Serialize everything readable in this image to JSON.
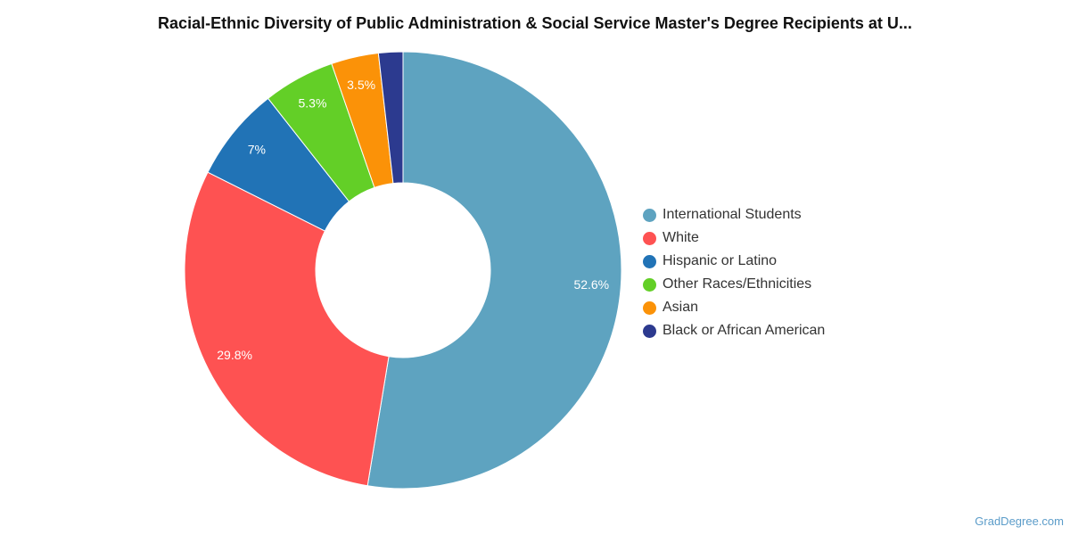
{
  "chart_data": {
    "type": "pie",
    "title": "Racial-Ethnic Diversity of Public Administration & Social Service Master's Degree Recipients at U...",
    "donut": true,
    "legend_position": "right",
    "slices": [
      {
        "label": "International Students",
        "value": 52.6,
        "display": "52.6%",
        "color": "#5ea3c0"
      },
      {
        "label": "White",
        "value": 29.8,
        "display": "29.8%",
        "color": "#fe5252"
      },
      {
        "label": "Hispanic or Latino",
        "value": 7.0,
        "display": "7%",
        "color": "#2173b6"
      },
      {
        "label": "Other Races/Ethnicities",
        "value": 5.3,
        "display": "5.3%",
        "color": "#63cf27"
      },
      {
        "label": "Asian",
        "value": 3.5,
        "display": "3.5%",
        "color": "#fb9208"
      },
      {
        "label": "Black or African American",
        "value": 1.8,
        "display": "",
        "color": "#2c3a8f"
      }
    ]
  },
  "footer": {
    "watermark": "GradDegree.com"
  }
}
